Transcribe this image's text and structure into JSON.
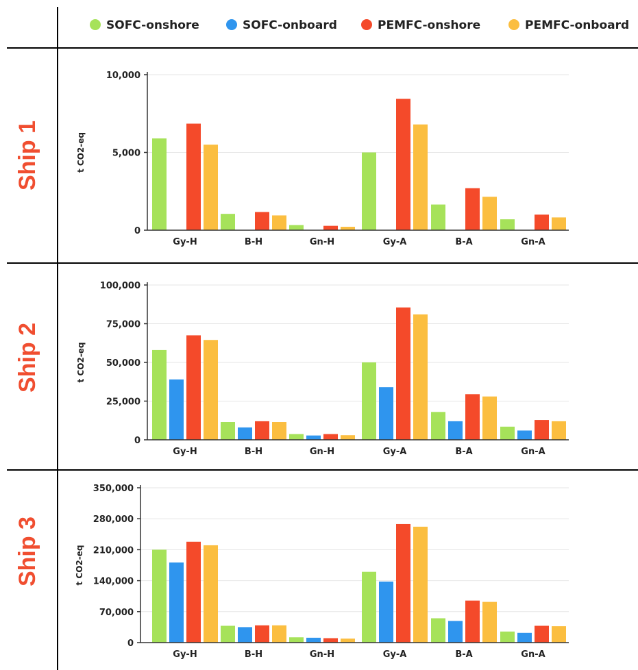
{
  "legend": {
    "entries": [
      {
        "label": "SOFC-onshore",
        "color": "#a6e25a"
      },
      {
        "label": "SOFC-onboard",
        "color": "#2f95ee"
      },
      {
        "label": "PEMFC-onshore",
        "color": "#f44a2a"
      },
      {
        "label": "PEMFC-onboard",
        "color": "#fbbe40"
      }
    ]
  },
  "ship_label_color": "#f04e30",
  "chart_data": [
    {
      "type": "bar",
      "ship_label": "Ship 1",
      "ylabel": "t CO2-eq",
      "ylim": [
        0,
        10000
      ],
      "yticks": [
        0,
        5000,
        10000
      ],
      "ytick_labels": [
        "0",
        "5,000",
        "10,000"
      ],
      "categories": [
        "Gy-H",
        "B-H",
        "Gn-H",
        "Gy-A",
        "B-A",
        "Gn-A"
      ],
      "series": [
        {
          "name": "SOFC-onshore",
          "values": [
            5900,
            1050,
            330,
            5000,
            1650,
            700
          ]
        },
        {
          "name": "SOFC-onboard",
          "values": [
            0,
            0,
            0,
            0,
            0,
            0
          ]
        },
        {
          "name": "PEMFC-onshore",
          "values": [
            6850,
            1170,
            280,
            8450,
            2700,
            1000
          ]
        },
        {
          "name": "PEMFC-onboard",
          "values": [
            5500,
            950,
            220,
            6800,
            2150,
            820
          ]
        }
      ]
    },
    {
      "type": "bar",
      "ship_label": "Ship 2",
      "ylabel": "t CO2-eq",
      "ylim": [
        0,
        100000
      ],
      "yticks": [
        0,
        25000,
        50000,
        75000,
        100000
      ],
      "ytick_labels": [
        "0",
        "25,000",
        "50,000",
        "75,000",
        "100,000"
      ],
      "categories": [
        "Gy-H",
        "B-H",
        "Gn-H",
        "Gy-A",
        "B-A",
        "Gn-A"
      ],
      "series": [
        {
          "name": "SOFC-onshore",
          "values": [
            58000,
            11500,
            3700,
            50000,
            18000,
            8500
          ]
        },
        {
          "name": "SOFC-onboard",
          "values": [
            39000,
            8000,
            2800,
            34000,
            12000,
            6000
          ]
        },
        {
          "name": "PEMFC-onshore",
          "values": [
            67500,
            12000,
            3700,
            85500,
            29500,
            12800
          ]
        },
        {
          "name": "PEMFC-onboard",
          "values": [
            64500,
            11500,
            3000,
            81000,
            28000,
            12000
          ]
        }
      ]
    },
    {
      "type": "bar",
      "ship_label": "Ship 3",
      "ylabel": "t CO2-eq",
      "ylim": [
        0,
        350000
      ],
      "yticks": [
        0,
        70000,
        140000,
        210000,
        280000,
        350000
      ],
      "ytick_labels": [
        "0",
        "70,000",
        "140,000",
        "210,000",
        "280,000",
        "350,000"
      ],
      "categories": [
        "Gy-H",
        "B-H",
        "Gn-H",
        "Gy-A",
        "B-A",
        "Gn-A"
      ],
      "series": [
        {
          "name": "SOFC-onshore",
          "values": [
            210000,
            38000,
            12000,
            160000,
            55000,
            25000
          ]
        },
        {
          "name": "SOFC-onboard",
          "values": [
            181000,
            35000,
            11000,
            138000,
            49000,
            22000
          ]
        },
        {
          "name": "PEMFC-onshore",
          "values": [
            228000,
            39000,
            10000,
            268000,
            95000,
            38000
          ]
        },
        {
          "name": "PEMFC-onboard",
          "values": [
            220000,
            39000,
            9000,
            262000,
            92000,
            37000
          ]
        }
      ]
    }
  ]
}
